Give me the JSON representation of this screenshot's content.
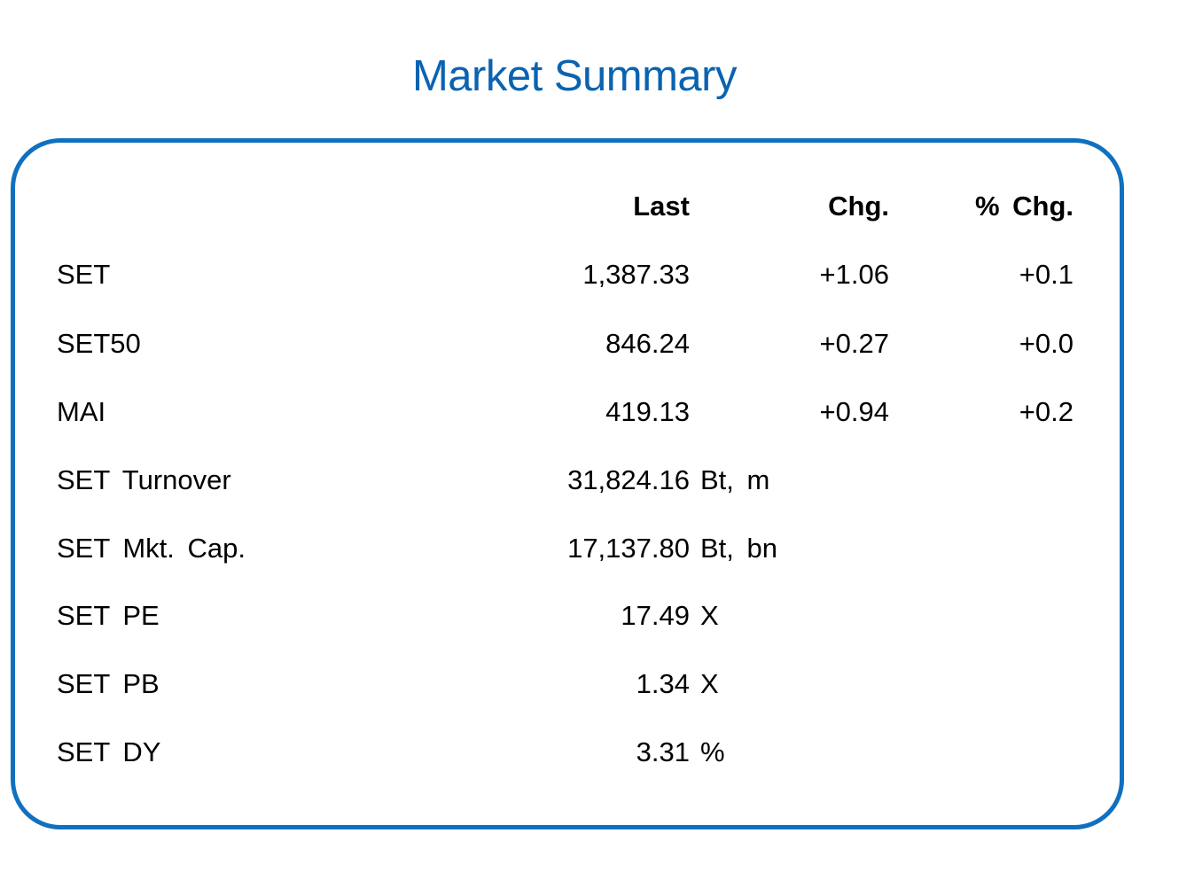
{
  "title": "Market Summary",
  "columns": {
    "last": "Last",
    "chg": "Chg.",
    "pchg": "% Chg."
  },
  "rows": [
    {
      "label": "SET",
      "last": "1,387.33",
      "unit": "",
      "chg": "+1.06",
      "pchg": "+0.1"
    },
    {
      "label": "SET50",
      "last": "846.24",
      "unit": "",
      "chg": "+0.27",
      "pchg": "+0.0"
    },
    {
      "label": "MAI",
      "last": "419.13",
      "unit": "",
      "chg": "+0.94",
      "pchg": "+0.2"
    },
    {
      "label": "SET Turnover",
      "last": "31,824.16",
      "unit": "Bt, m",
      "chg": "",
      "pchg": ""
    },
    {
      "label": "SET Mkt. Cap.",
      "last": "17,137.80",
      "unit": "Bt, bn",
      "chg": "",
      "pchg": ""
    },
    {
      "label": "SET PE",
      "last": "17.49",
      "unit": "X",
      "chg": "",
      "pchg": ""
    },
    {
      "label": "SET PB",
      "last": "1.34",
      "unit": "X",
      "chg": "",
      "pchg": ""
    },
    {
      "label": "SET DY",
      "last": "3.31",
      "unit": "%",
      "chg": "",
      "pchg": ""
    }
  ],
  "colors": {
    "accent": "#1070c0",
    "title": "#0a63b0"
  }
}
